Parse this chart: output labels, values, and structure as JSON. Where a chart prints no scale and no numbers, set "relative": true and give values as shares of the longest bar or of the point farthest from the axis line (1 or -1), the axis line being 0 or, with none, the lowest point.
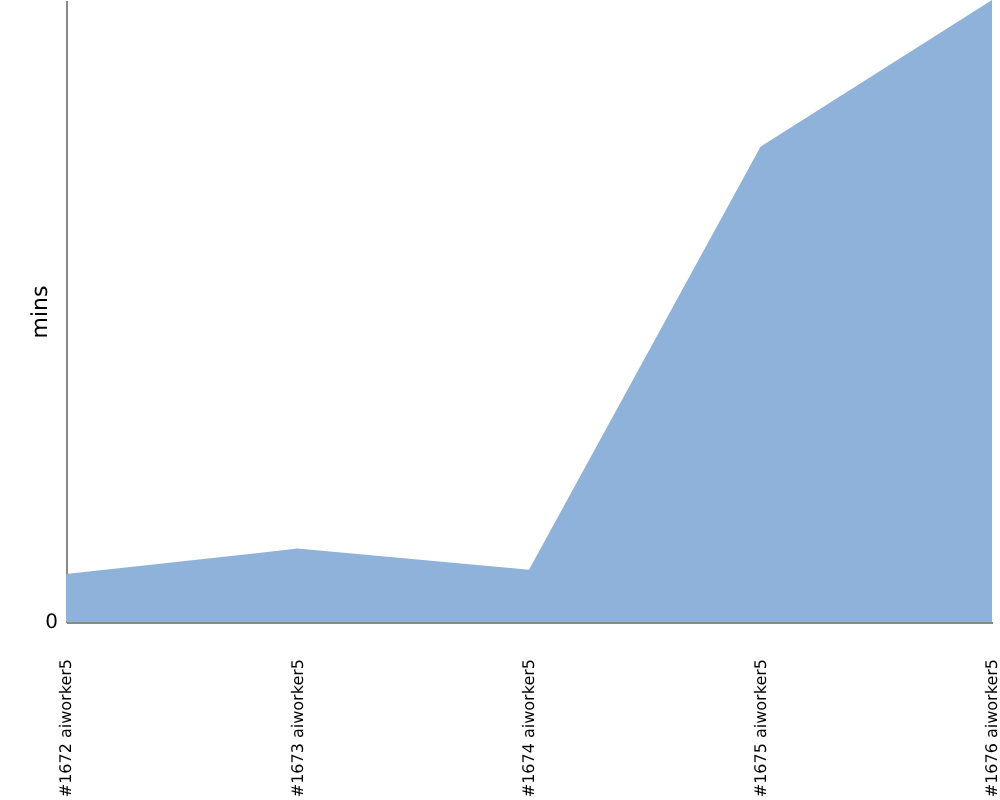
{
  "chart_data": {
    "type": "area",
    "ylabel": "mins",
    "relative": true,
    "annotations": [
      "0"
    ],
    "categories": [
      "#1672 aiworker5",
      "#1673 aiworker5",
      "#1674 aiworker5",
      "#1675 aiworker5",
      "#1676 aiworker5"
    ],
    "series": [
      {
        "color": "#8fb2da",
        "values": [
          0.077,
          0.118,
          0.084,
          0.764,
          1
        ]
      }
    ]
  }
}
